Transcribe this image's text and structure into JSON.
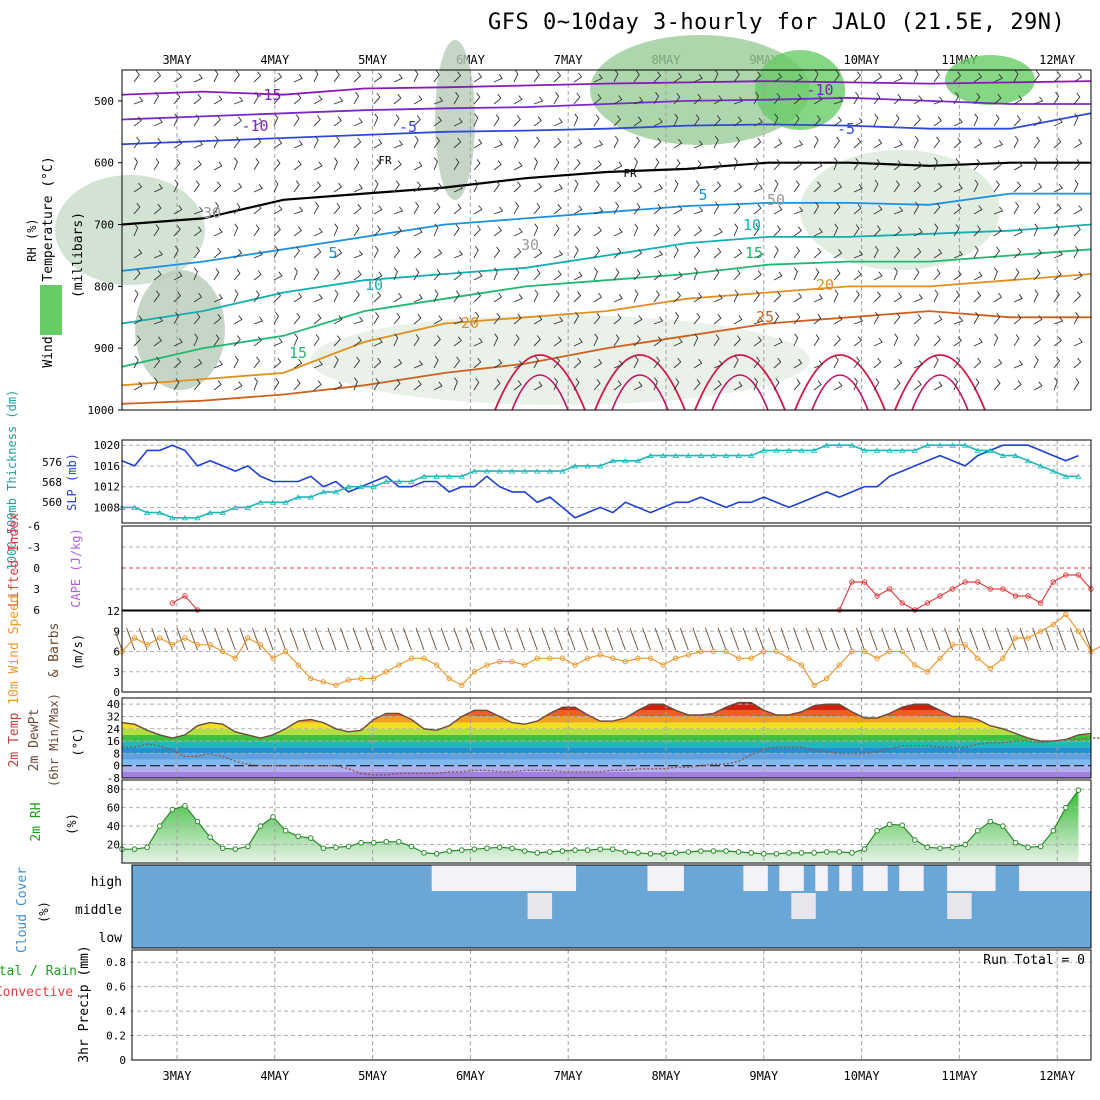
{
  "title": "GFS 0~10day 3-hourly for JALO (21.5E, 29N)",
  "dates": [
    "3MAY",
    "4MAY",
    "5MAY",
    "6MAY",
    "7MAY",
    "8MAY",
    "9MAY",
    "10MAY",
    "11MAY",
    "12MAY"
  ],
  "colors": {
    "grid": "#9a9a9a",
    "rh_green": "#66cc66",
    "cloud_blue": "#6ba7d6"
  },
  "chart_data": [
    {
      "type": "line",
      "id": "upper-air",
      "ylabel_parts": [
        "Wind (m/s)",
        "Temperature (°C)",
        "RH (%)"
      ],
      "ylabel_unit": "(millibars)",
      "y_ticks": [
        "500",
        "600",
        "700",
        "800",
        "900",
        "1000"
      ],
      "ylim": [
        450,
        1000
      ],
      "isotherm_labels": [
        "-15",
        "-10",
        "-5",
        "FR",
        "FR",
        "-5",
        "-10",
        "5",
        "10",
        "15",
        "20",
        "25",
        "5",
        "10",
        "15",
        "20",
        "30",
        "50",
        "30"
      ],
      "series": [
        {
          "label": "-15",
          "color": "#8a1ab8",
          "p": [
            490,
            485,
            490,
            480,
            478,
            475,
            472,
            470,
            468,
            470,
            472,
            470,
            468
          ]
        },
        {
          "label": "-10",
          "color": "#7a2ac8",
          "p": [
            530,
            525,
            520,
            515,
            512,
            510,
            505,
            500,
            498,
            495,
            500,
            505,
            505
          ]
        },
        {
          "label": "-5",
          "color": "#3048d8",
          "p": [
            570,
            565,
            560,
            555,
            550,
            548,
            545,
            540,
            538,
            540,
            545,
            545,
            520
          ]
        },
        {
          "label": "FR",
          "color": "#000000",
          "p": [
            700,
            690,
            660,
            650,
            640,
            625,
            615,
            610,
            600,
            600,
            605,
            600,
            600
          ]
        },
        {
          "label": "5",
          "color": "#1e90e0",
          "p": [
            775,
            760,
            740,
            720,
            700,
            690,
            680,
            670,
            665,
            665,
            668,
            650,
            650
          ]
        },
        {
          "label": "10",
          "color": "#10b0b0",
          "p": [
            860,
            840,
            810,
            790,
            780,
            770,
            750,
            730,
            720,
            720,
            715,
            710,
            700
          ]
        },
        {
          "label": "15",
          "color": "#20b870",
          "p": [
            930,
            900,
            880,
            840,
            820,
            800,
            790,
            780,
            765,
            760,
            760,
            750,
            740
          ]
        },
        {
          "label": "20",
          "color": "#e09020",
          "p": [
            960,
            950,
            940,
            890,
            860,
            850,
            840,
            820,
            810,
            800,
            800,
            790,
            780
          ]
        },
        {
          "label": "25",
          "color": "#d06020",
          "p": [
            990,
            985,
            975,
            960,
            940,
            925,
            900,
            880,
            860,
            850,
            840,
            850,
            850
          ]
        }
      ]
    },
    {
      "type": "line",
      "id": "slp-thickness",
      "ylabel_left": "1000~500mb Thickness (dm)",
      "ylabel_right": "SLP (mb)",
      "left_ticks": [
        "576",
        "568",
        "560"
      ],
      "right_ticks": [
        "1020",
        "1016",
        "1012",
        "1008"
      ],
      "ylim_slp": [
        1005,
        1021
      ],
      "series": [
        {
          "name": "SLP",
          "color": "#2040d0",
          "values": [
            1017,
            1016,
            1019,
            1019,
            1020,
            1019,
            1016,
            1017,
            1016,
            1015,
            1016,
            1014,
            1013,
            1013,
            1013,
            1014,
            1012,
            1013,
            1011,
            1012,
            1013,
            1014,
            1012,
            1012,
            1013,
            1013,
            1011,
            1012,
            1012,
            1014,
            1012,
            1011,
            1011,
            1009,
            1010,
            1008,
            1006,
            1007,
            1008,
            1007,
            1009,
            1008,
            1007,
            1008,
            1009,
            1009,
            1010,
            1009,
            1008,
            1009,
            1009,
            1010,
            1009,
            1008,
            1009,
            1010,
            1011,
            1010,
            1011,
            1012,
            1012,
            1014,
            1015,
            1016,
            1017,
            1018,
            1017,
            1016,
            1018,
            1019,
            1020,
            1020,
            1020,
            1019,
            1018,
            1017,
            1018
          ]
        },
        {
          "name": "Thickness",
          "color": "#20b8b8",
          "values": [
            1008,
            1008,
            1007,
            1007,
            1006,
            1006,
            1006,
            1007,
            1007,
            1008,
            1008,
            1009,
            1009,
            1009,
            1010,
            1010,
            1011,
            1011,
            1012,
            1012,
            1012,
            1013,
            1013,
            1013,
            1014,
            1014,
            1014,
            1014,
            1015,
            1015,
            1015,
            1015,
            1015,
            1015,
            1015,
            1015,
            1016,
            1016,
            1016,
            1017,
            1017,
            1017,
            1018,
            1018,
            1018,
            1018,
            1018,
            1018,
            1018,
            1018,
            1018,
            1019,
            1019,
            1019,
            1019,
            1019,
            1020,
            1020,
            1020,
            1019,
            1019,
            1019,
            1019,
            1019,
            1020,
            1020,
            1020,
            1020,
            1019,
            1019,
            1018,
            1018,
            1017,
            1016,
            1015,
            1014,
            1014
          ]
        }
      ]
    },
    {
      "type": "line",
      "id": "lifted-index",
      "ylabel_a": "Lifted Index",
      "ylabel_b": "CAPE (J/kg)",
      "y_ticks": [
        "-6",
        "-3",
        "0",
        "3",
        "6"
      ],
      "ylim": [
        6,
        -6
      ],
      "series": [
        {
          "name": "Lifted Index",
          "color": "#e04040",
          "segments": [
            {
              "x": [
                4,
                5,
                6
              ],
              "y": [
                5,
                4,
                6
              ]
            },
            {
              "x": [
                57,
                58,
                59,
                60,
                61,
                62,
                63,
                64,
                65,
                66,
                67,
                68,
                69,
                70,
                71,
                72,
                73,
                74,
                75,
                76,
                77
              ],
              "y": [
                6,
                2,
                2,
                4,
                3,
                5,
                6,
                5,
                4,
                3,
                2,
                2,
                3,
                3,
                4,
                4,
                5,
                2,
                1,
                1,
                3
              ]
            }
          ]
        }
      ]
    },
    {
      "type": "line",
      "id": "wind10m",
      "ylabel_a": "10m Wind Speed",
      "ylabel_b": "& Barbs",
      "ylabel_unit": "(m/s)",
      "y_ticks": [
        "12",
        "9",
        "6",
        "3",
        "0"
      ],
      "ylim": [
        0,
        12
      ],
      "series": [
        {
          "name": "Speed",
          "color": "#e89a30",
          "values": [
            6,
            8,
            7,
            8,
            7,
            8,
            7,
            7,
            6,
            5,
            8,
            7,
            5,
            6,
            4,
            2,
            1.5,
            1,
            1.8,
            2,
            2,
            3,
            4,
            5,
            5,
            4,
            2,
            1,
            3,
            4,
            4.5,
            4.5,
            4,
            5,
            5,
            5,
            4,
            5,
            5.5,
            5,
            4.5,
            5,
            5,
            4,
            5,
            5.5,
            6,
            6,
            6,
            5,
            5,
            6,
            6,
            5,
            4,
            1,
            2,
            4,
            6,
            6,
            5,
            6,
            6,
            4,
            3,
            5,
            7,
            7,
            5,
            3.5,
            5,
            8,
            8,
            9,
            10,
            11.5,
            9,
            6,
            7
          ]
        }
      ]
    },
    {
      "type": "area",
      "id": "temperature",
      "ylabel_a": "2m Temp",
      "ylabel_b": "2m DewPt",
      "ylabel_c": "(6hr Min/Max)",
      "ylabel_unit": "(°C)",
      "y_ticks": [
        "40",
        "32",
        "24",
        "16",
        "8",
        "0",
        "-8"
      ],
      "ylim": [
        -8,
        44
      ],
      "series": [
        {
          "name": "2m Temp",
          "color": "#6a4a3a",
          "values": [
            28,
            27,
            23,
            20,
            18,
            20,
            26,
            28,
            27,
            22,
            20,
            18,
            20,
            24,
            29,
            30,
            28,
            24,
            22,
            23,
            30,
            34,
            34,
            30,
            24,
            23,
            26,
            32,
            36,
            36,
            32,
            28,
            27,
            29,
            34,
            38,
            38,
            33,
            29,
            29,
            31,
            36,
            40,
            40,
            36,
            33,
            33,
            34,
            38,
            41,
            41,
            36,
            33,
            33,
            35,
            39,
            40,
            40,
            35,
            31,
            31,
            34,
            38,
            40,
            40,
            36,
            32,
            32,
            30,
            26,
            24,
            21,
            18,
            16,
            16,
            17,
            20,
            21
          ]
        },
        {
          "name": "2m DewPt",
          "color": "#8a5a4a",
          "values": [
            12,
            12,
            14,
            13,
            10,
            6,
            6,
            8,
            6,
            3,
            1,
            0,
            0,
            0,
            0,
            0,
            0,
            0,
            -2,
            -5,
            -6,
            -6,
            -5,
            -5,
            -5,
            -5,
            -4,
            -4,
            -3,
            -3,
            -4,
            -4,
            -3,
            -3,
            -3,
            -4,
            -4,
            -4,
            -4,
            -3,
            -3,
            -2,
            -2,
            -2,
            -1,
            -1,
            0,
            1,
            1,
            3,
            7,
            11,
            12,
            12,
            12,
            10,
            9,
            8,
            8,
            8,
            9,
            11,
            13,
            13,
            13,
            12,
            12,
            12,
            14,
            15,
            15,
            16,
            16,
            15,
            16,
            17,
            17,
            18,
            18
          ]
        }
      ]
    },
    {
      "type": "area",
      "id": "rh2m",
      "ylabel_a": "2m RH",
      "ylabel_unit": "(%)",
      "y_ticks": [
        "80",
        "60",
        "40",
        "20"
      ],
      "ylim": [
        0,
        90
      ],
      "series": [
        {
          "name": "2m RH",
          "color": "#2a8a2a",
          "values": [
            15,
            15,
            17,
            40,
            58,
            62,
            45,
            28,
            16,
            15,
            18,
            40,
            50,
            35,
            29,
            27,
            16,
            17,
            18,
            22,
            22,
            23,
            23,
            18,
            11,
            10,
            13,
            14,
            15,
            16,
            17,
            16,
            13,
            11,
            12,
            13,
            14,
            14,
            15,
            15,
            12,
            11,
            10,
            10,
            11,
            12,
            13,
            13,
            13,
            12,
            11,
            10,
            10,
            11,
            11,
            11,
            12,
            12,
            11,
            15,
            35,
            42,
            41,
            25,
            17,
            16,
            17,
            20,
            35,
            45,
            40,
            22,
            17,
            18,
            35,
            60,
            79
          ]
        }
      ]
    },
    {
      "type": "heatmap",
      "id": "cloud-cover",
      "ylabel_a": "Cloud Cover",
      "ylabel_unit": "(%)",
      "row_labels": [
        "high",
        "middle",
        "low"
      ],
      "high": [
        0,
        0,
        0,
        0,
        0,
        0,
        0,
        0,
        0,
        0,
        0,
        0,
        0,
        0,
        0,
        0,
        0,
        0,
        0,
        0,
        0,
        0,
        0,
        0,
        0,
        1,
        1,
        1,
        1,
        1,
        1,
        1,
        1,
        1,
        1,
        1,
        1,
        0,
        0,
        0,
        0,
        0,
        0,
        1,
        1,
        1,
        0,
        0,
        0,
        0,
        0,
        1,
        1,
        0,
        1,
        1,
        0,
        1,
        0,
        1,
        0,
        1,
        1,
        0,
        1,
        1,
        0,
        0,
        1,
        1,
        1,
        1,
        0,
        0,
        1,
        1,
        1,
        1,
        1,
        1
      ],
      "middle": [
        0,
        0,
        0,
        0,
        0,
        0,
        0,
        0,
        0,
        0,
        0,
        0,
        0,
        0,
        0,
        0,
        0,
        0,
        0,
        0,
        0,
        0,
        0,
        0,
        0,
        0,
        0,
        0,
        0,
        0,
        0,
        0,
        0,
        1,
        1,
        0,
        0,
        0,
        0,
        0,
        0,
        0,
        0,
        0,
        0,
        0,
        0,
        0,
        0,
        0,
        0,
        0,
        0,
        0,
        0,
        1,
        1,
        0,
        0,
        0,
        0,
        0,
        0,
        0,
        0,
        0,
        0,
        0,
        1,
        1,
        0,
        0,
        0,
        0,
        0,
        0,
        0,
        0,
        0,
        0
      ],
      "low": []
    },
    {
      "type": "line",
      "id": "precip",
      "ylabel_a": "Total / Rain",
      "ylabel_b": "Convective",
      "ylabel_c": "3hr Precip (mm)",
      "y_ticks": [
        "0.8",
        "0.6",
        "0.4",
        "0.2",
        "0"
      ],
      "ylim": [
        0,
        1
      ],
      "run_total": "Run Total = 0",
      "values": []
    }
  ]
}
